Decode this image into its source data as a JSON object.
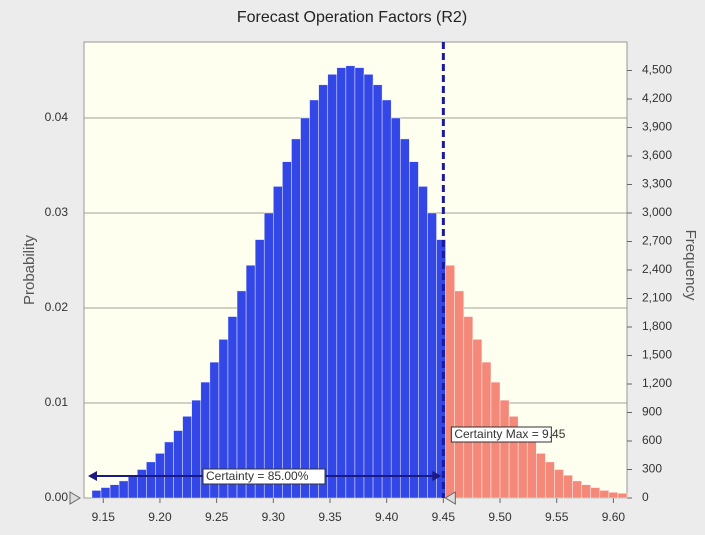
{
  "chart_data": {
    "type": "histogram",
    "title": "Forecast Operation Factors (R2)",
    "y_label": "Probability",
    "y2_label": "Frequency",
    "bins": [
      9.14,
      9.148,
      9.156,
      9.164,
      9.172,
      9.18,
      9.188,
      9.196,
      9.204,
      9.212,
      9.22,
      9.228,
      9.236,
      9.244,
      9.252,
      9.26,
      9.268,
      9.276,
      9.284,
      9.292,
      9.3,
      9.308,
      9.316,
      9.324,
      9.332,
      9.34,
      9.348,
      9.356,
      9.364,
      9.372,
      9.38,
      9.388,
      9.396,
      9.404,
      9.412,
      9.42,
      9.428,
      9.436,
      9.444,
      9.452,
      9.46,
      9.468,
      9.476,
      9.484,
      9.492,
      9.5,
      9.508,
      9.516,
      9.524,
      9.532,
      9.54,
      9.548,
      9.556,
      9.564,
      9.572,
      9.58,
      9.588,
      9.596,
      9.604,
      9.612
    ],
    "values": [
      0.0008,
      0.0011,
      0.0014,
      0.0018,
      0.0024,
      0.003,
      0.0038,
      0.0047,
      0.0059,
      0.0071,
      0.0086,
      0.0103,
      0.0122,
      0.0143,
      0.0167,
      0.0191,
      0.0218,
      0.0245,
      0.0272,
      0.03,
      0.0328,
      0.0354,
      0.0378,
      0.04,
      0.0419,
      0.0435,
      0.0446,
      0.0453,
      0.0455,
      0.0453,
      0.0446,
      0.0435,
      0.0419,
      0.04,
      0.0378,
      0.0354,
      0.0328,
      0.03,
      0.0272,
      0.0245,
      0.0218,
      0.0191,
      0.0167,
      0.0143,
      0.0122,
      0.0103,
      0.0086,
      0.0071,
      0.0059,
      0.0047,
      0.0038,
      0.003,
      0.0024,
      0.0018,
      0.0014,
      0.0011,
      0.0008,
      0.0006,
      0.0005
    ],
    "color": "#3347e6",
    "outside_color": "#f4897a",
    "certainty_max": 9.45,
    "certainty_max_label": "Certainty Max = 9.45",
    "certainty_label": "Certainty = 85.00%",
    "xlim": [
      9.133,
      9.612
    ],
    "xticks": [
      9.15,
      {
        "value": 9.2,
        "label": "9.20"
      },
      9.25,
      {
        "value": 9.3,
        "label": "9.30"
      },
      9.35,
      {
        "value": 9.4,
        "label": "9.40"
      },
      9.45,
      {
        "value": 9.5,
        "label": "9.50"
      },
      9.55,
      {
        "value": 9.6,
        "label": "9.60"
      }
    ],
    "ylim": [
      0,
      0.048
    ],
    "yticks": [
      {
        "value": 0,
        "label": "0.00"
      },
      0.01,
      0.02,
      0.03,
      0.04
    ],
    "y2lim": [
      0,
      4800
    ],
    "y2ticks": [
      0,
      300,
      600,
      900,
      {
        "value": 1200,
        "label": "1,200"
      },
      {
        "value": 1500,
        "label": "1,500"
      },
      {
        "value": 1800,
        "label": "1,800"
      },
      {
        "value": 2100,
        "label": "2,100"
      },
      {
        "value": 2400,
        "label": "2,400"
      },
      {
        "value": 2700,
        "label": "2,700"
      },
      {
        "value": 3000,
        "label": "3,000"
      },
      {
        "value": 3300,
        "label": "3,300"
      },
      {
        "value": 3600,
        "label": "3,600"
      },
      {
        "value": 3900,
        "label": "3,900"
      },
      {
        "value": 4200,
        "label": "4,200"
      },
      {
        "value": 4500,
        "label": "4,500"
      }
    ],
    "grid": true
  }
}
